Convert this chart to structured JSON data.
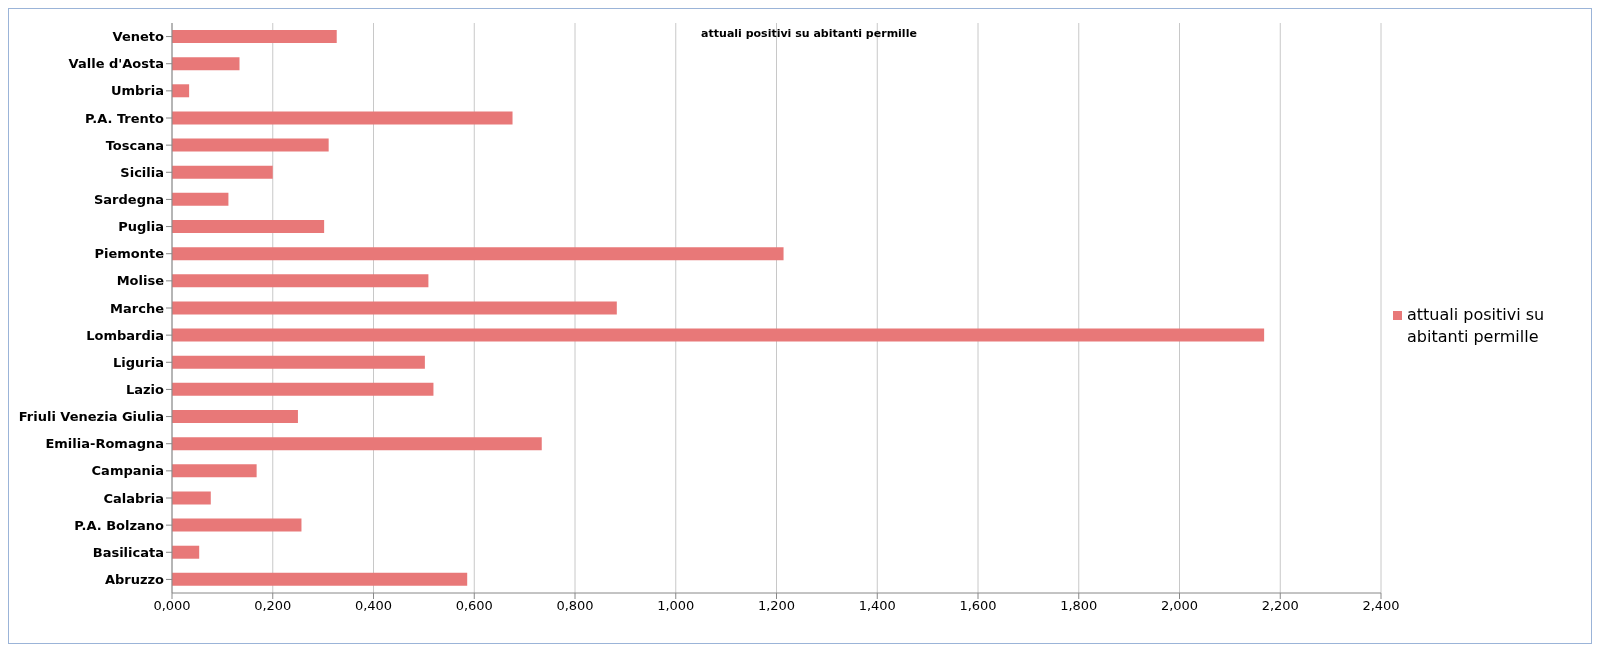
{
  "chart_data": {
    "type": "bar",
    "orientation": "horizontal",
    "title": "attuali positivi su abitanti permille",
    "categories": [
      "Veneto",
      "Valle d'Aosta",
      "Umbria",
      "P.A. Trento",
      "Toscana",
      "Sicilia",
      "Sardegna",
      "Puglia",
      "Piemonte",
      "Molise",
      "Marche",
      "Lombardia",
      "Liguria",
      "Lazio",
      "Friuli Venezia Giulia",
      "Emilia-Romagna",
      "Campania",
      "Calabria",
      "P.A. Bolzano",
      "Basilicata",
      "Abruzzo"
    ],
    "series": [
      {
        "name": "attuali positivi su abitanti permille",
        "color": "#e87878",
        "values": [
          0.327,
          0.134,
          0.034,
          0.676,
          0.311,
          0.2,
          0.112,
          0.302,
          1.214,
          0.509,
          0.883,
          2.168,
          0.502,
          0.519,
          0.25,
          0.734,
          0.168,
          0.077,
          0.257,
          0.054,
          0.586
        ]
      }
    ],
    "xlim": [
      0,
      2.4
    ],
    "xticks": [
      {
        "value": 0,
        "label": "0,000"
      },
      {
        "value": 0.2,
        "label": "0,200"
      },
      {
        "value": 0.4,
        "label": "0,400"
      },
      {
        "value": 0.6,
        "label": "0,600"
      },
      {
        "value": 0.8,
        "label": "0,800"
      },
      {
        "value": 1,
        "label": "1,000"
      },
      {
        "value": 1.2,
        "label": "1,200"
      },
      {
        "value": 1.4,
        "label": "1,400"
      },
      {
        "value": 1.6,
        "label": "1,600"
      },
      {
        "value": 1.8,
        "label": "1,800"
      },
      {
        "value": 2,
        "label": "2,000"
      },
      {
        "value": 2.2,
        "label": "2,200"
      },
      {
        "value": 2.4,
        "label": "2,400"
      }
    ],
    "grid": "x",
    "legend": "right"
  }
}
